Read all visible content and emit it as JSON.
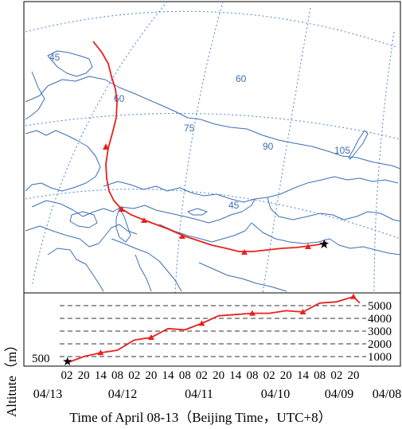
{
  "map": {
    "graticule_labels": {
      "lon_45_top": "45",
      "lon_60_top": "60",
      "lat_60": "60",
      "lat_75": "75",
      "lat_90": "90",
      "lat_105": "105",
      "lat_45_bottom": "45"
    },
    "colors": {
      "border": "#3b6fb6",
      "grid": "#5b8fd0",
      "track": "#e8211c"
    }
  },
  "profile": {
    "y_ticks": [
      "5000",
      "4000",
      "3000",
      "2000",
      "1000"
    ],
    "y_tick_values": [
      5000,
      4000,
      3000,
      2000,
      1000
    ],
    "y_start_label": "500",
    "y_axis_label": "Altitute（m）",
    "x_hour_labels": [
      "02",
      "20",
      "14",
      "08",
      "02",
      "20",
      "14",
      "08",
      "02",
      "20",
      "14",
      "08",
      "02",
      "20",
      "14",
      "08",
      "02",
      "20"
    ],
    "date_labels": [
      "04/13",
      "04/12",
      "04/11",
      "04/10",
      "04/09",
      "04/08"
    ],
    "caption": "Time of April 08-13（Beijing Time，UTC+8）"
  },
  "chart_data": {
    "type": "line",
    "title": "",
    "xlabel": "Time of April 08-13（Beijing Time，UTC+8）",
    "ylabel": "Altitute（m）",
    "x": [
      "04/13 02",
      "04/13 20",
      "04/12 14",
      "04/12 08",
      "04/12 02",
      "04/11 20",
      "04/11 14",
      "04/11 08",
      "04/11 02",
      "04/10 20",
      "04/10 14",
      "04/10 08",
      "04/10 02",
      "04/09 20",
      "04/09 14",
      "04/09 08",
      "04/09 02",
      "04/08 20"
    ],
    "series": [
      {
        "values": [
          500,
          1000,
          1300,
          1500,
          2300,
          2500,
          3200,
          3100,
          3600,
          4200,
          4300,
          4400,
          4400,
          4600,
          4500,
          5200,
          5300,
          5700
        ]
      }
    ],
    "ylim": [
      500,
      5800
    ],
    "grid": true
  }
}
